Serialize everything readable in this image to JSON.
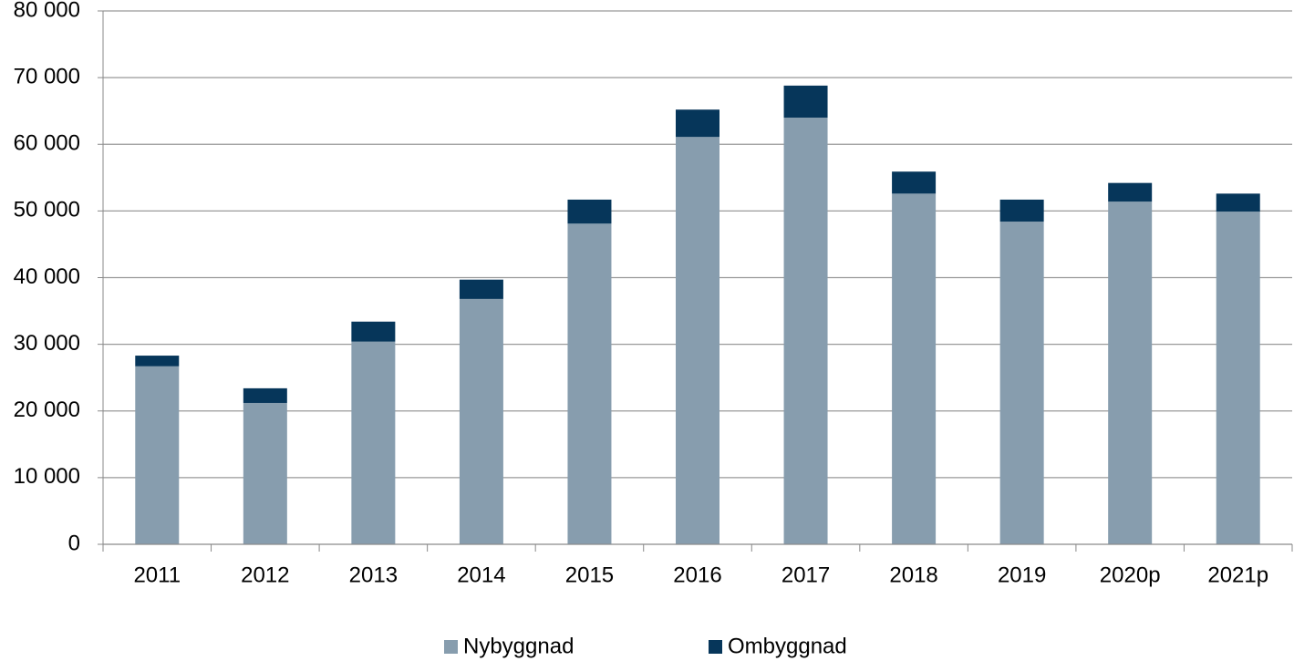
{
  "chart_data": {
    "type": "stacked-bar",
    "categories": [
      "2011",
      "2012",
      "2013",
      "2014",
      "2015",
      "2016",
      "2017",
      "2018",
      "2019",
      "2020p",
      "2021p"
    ],
    "series": [
      {
        "name": "Nybyggnad",
        "color": "#879dae",
        "values": [
          26700,
          21200,
          30400,
          36800,
          48100,
          61100,
          64000,
          52600,
          48400,
          51400,
          49900
        ]
      },
      {
        "name": "Ombyggnad",
        "color": "#06365a",
        "values": [
          1600,
          2200,
          3000,
          2900,
          3600,
          4100,
          4800,
          3300,
          3300,
          2800,
          2700
        ]
      }
    ],
    "ylim": [
      0,
      80000
    ],
    "yticks": [
      0,
      {
        "value": 10000,
        "label": "10 000"
      },
      {
        "value": 20000,
        "label": "20 000"
      },
      {
        "value": 30000,
        "label": "30 000"
      },
      {
        "value": 40000,
        "label": "40 000"
      },
      {
        "value": 50000,
        "label": "50 000"
      },
      {
        "value": 60000,
        "label": "60 000"
      },
      {
        "value": 70000,
        "label": "70 000"
      },
      {
        "value": 80000,
        "label": "80 000"
      }
    ],
    "grid": true,
    "legend": "bottom"
  }
}
